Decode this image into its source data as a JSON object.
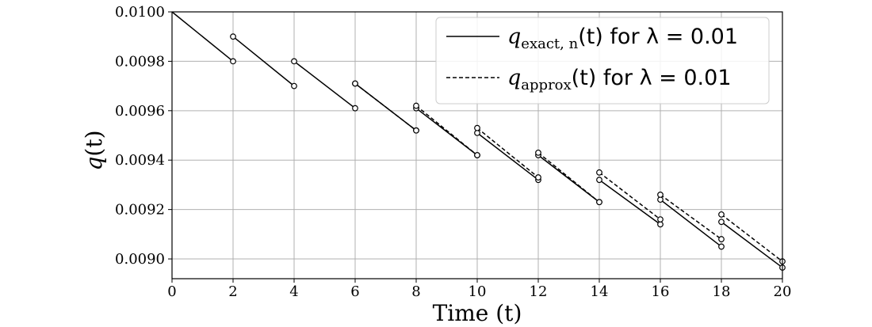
{
  "chart_data": {
    "type": "line",
    "xlabel": "Time (t)",
    "ylabel_symbol": "q",
    "ylabel_suffix": "(t)",
    "xlim": [
      0,
      20
    ],
    "ylim": [
      0.00892,
      0.01
    ],
    "xticks": [
      0,
      2,
      4,
      6,
      8,
      10,
      12,
      14,
      16,
      18,
      20
    ],
    "yticks": [
      {
        "value": 0.009,
        "label": "0.0090"
      },
      0.0092,
      0.0094,
      0.0096,
      0.0098,
      {
        "value": 0.01,
        "label": "0.0100"
      }
    ],
    "grid": true,
    "legend": "upper right",
    "series": [
      {
        "name": "q",
        "name_subscript": "exact, n",
        "name_suffix": "(t) for λ = 0.01",
        "color": "#000000",
        "dash": false,
        "x": [
          0,
          2,
          2,
          2,
          4,
          4,
          4,
          6,
          6,
          6,
          8,
          8,
          8,
          10,
          10,
          10,
          12,
          12,
          12,
          14,
          14,
          14,
          16,
          16,
          16,
          18,
          18,
          18,
          20
        ],
        "values": [
          0.01,
          0.0098,
          null,
          0.0099,
          0.0097,
          null,
          0.0098,
          0.00961,
          null,
          0.00971,
          0.00952,
          null,
          0.00961,
          0.00942,
          null,
          0.00951,
          0.00932,
          null,
          0.00942,
          0.00923,
          null,
          0.00932,
          0.00914,
          null,
          0.00924,
          0.00905,
          null,
          0.00915,
          0.008965
        ]
      },
      {
        "name": "q",
        "name_subscript": "approx",
        "name_suffix": "(t) for λ = 0.01",
        "color": "#000000",
        "dash": true,
        "x": [
          6,
          8,
          8,
          8,
          10,
          10,
          10,
          12,
          12,
          12,
          14,
          14,
          14,
          16,
          16,
          16,
          18,
          18,
          18,
          20
        ],
        "values": [
          0.00971,
          0.00952,
          null,
          0.00962,
          0.00942,
          null,
          0.00953,
          0.00933,
          null,
          0.00943,
          0.00923,
          null,
          0.00935,
          0.00916,
          null,
          0.00926,
          0.00908,
          null,
          0.00918,
          0.00899
        ]
      }
    ]
  }
}
